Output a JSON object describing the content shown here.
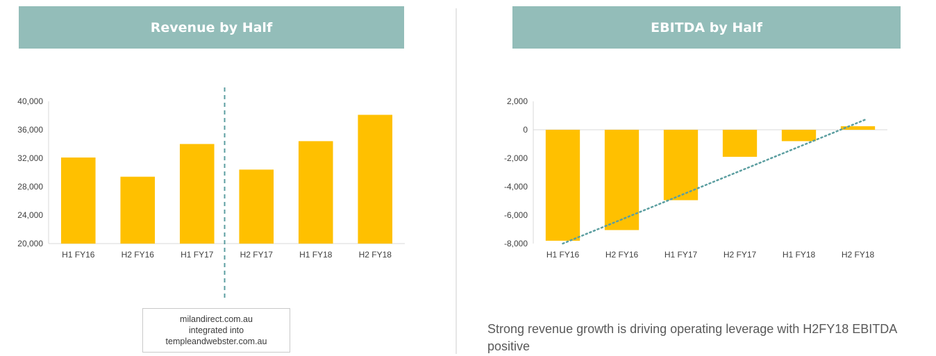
{
  "left_panel": {
    "title": "Revenue by Half"
  },
  "right_panel": {
    "title": "EBITDA by Half"
  },
  "callout": {
    "lines": [
      "milandirect.com.au",
      "integrated into",
      "templeandwebster.com.au"
    ]
  },
  "note": "Strong revenue growth is driving operating leverage with H2FY18 EBITDA positive",
  "colors": {
    "bar": "#ffc000",
    "banner": "#93bdb9",
    "trend": "#5b9ea0",
    "marker_line": "#5b9ea0"
  },
  "chart_data": [
    {
      "type": "bar",
      "title": "Revenue by Half",
      "categories": [
        "H1 FY16",
        "H2 FY16",
        "H1 FY17",
        "H2 FY17",
        "H1 FY18",
        "H2 FY18"
      ],
      "values": [
        32100,
        29400,
        34000,
        30400,
        34400,
        38100
      ],
      "ylim": [
        20000,
        40000
      ],
      "yticks": [
        20000,
        24000,
        28000,
        32000,
        36000,
        40000
      ],
      "ytick_labels": [
        "20,000",
        "24,000",
        "28,000",
        "32,000",
        "36,000",
        "40,000"
      ],
      "grid": false,
      "annotation": {
        "type": "vertical-dashed-line",
        "position": "H1 FY17"
      }
    },
    {
      "type": "bar",
      "title": "EBITDA by Half",
      "categories": [
        "H1 FY16",
        "H2 FY16",
        "H1 FY17",
        "H2 FY17",
        "H1 FY18",
        "H2 FY18"
      ],
      "values": [
        -7800,
        -7050,
        -4950,
        -1900,
        -800,
        250
      ],
      "ylim": [
        -8000,
        2000
      ],
      "yticks": [
        -8000,
        -6000,
        -4000,
        -2000,
        0,
        2000
      ],
      "ytick_labels": [
        "-8,000",
        "-6,000",
        "-4,000",
        "-2,000",
        "0",
        "2,000"
      ],
      "grid": false,
      "trendline": {
        "type": "linear",
        "style": "dotted",
        "from": [
          0,
          -8000
        ],
        "to": [
          5,
          700
        ]
      }
    }
  ]
}
